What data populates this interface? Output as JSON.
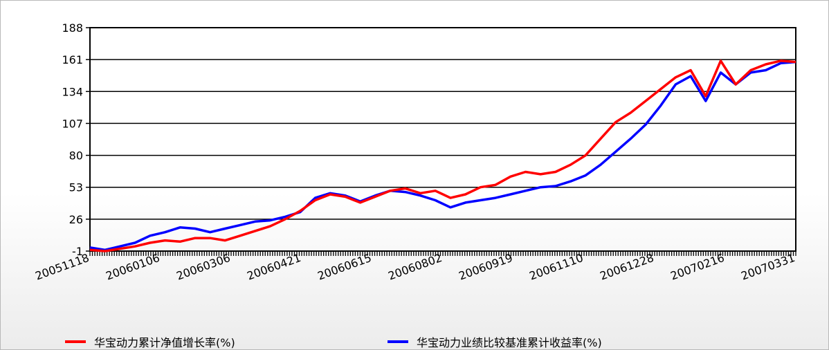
{
  "chart_data": {
    "type": "line",
    "yticks": [
      -1,
      26,
      53,
      80,
      107,
      134,
      161,
      188
    ],
    "ylim": [
      -1,
      188
    ],
    "xticks": [
      "20051118",
      "20060106",
      "20060306",
      "20060421",
      "20060615",
      "20060802",
      "20060919",
      "20061110",
      "20061228",
      "20070216",
      "20070331"
    ],
    "grid": true,
    "legend_position": "bottom",
    "series": [
      {
        "name": "华宝动力累计净值增长率(%)",
        "color": "#ff0000",
        "values": [
          0,
          -1,
          1,
          3,
          6,
          8,
          7,
          10,
          10,
          8,
          12,
          16,
          20,
          26,
          33,
          42,
          47,
          45,
          40,
          45,
          50,
          52,
          48,
          50,
          44,
          47,
          53,
          55,
          62,
          66,
          64,
          66,
          72,
          80,
          94,
          108,
          116,
          126,
          136,
          146,
          152,
          130,
          160,
          140,
          152,
          157,
          160,
          159
        ]
      },
      {
        "name": "华宝动力业绩比较基准累计收益率(%)",
        "color": "#0000ff",
        "values": [
          2,
          0,
          3,
          6,
          12,
          15,
          19,
          18,
          15,
          18,
          21,
          24,
          25,
          28,
          32,
          44,
          48,
          46,
          41,
          46,
          50,
          49,
          46,
          42,
          36,
          40,
          42,
          44,
          47,
          50,
          53,
          54,
          58,
          63,
          72,
          83,
          94,
          106,
          122,
          140,
          147,
          126,
          150,
          140,
          150,
          152,
          158,
          159
        ]
      }
    ]
  }
}
